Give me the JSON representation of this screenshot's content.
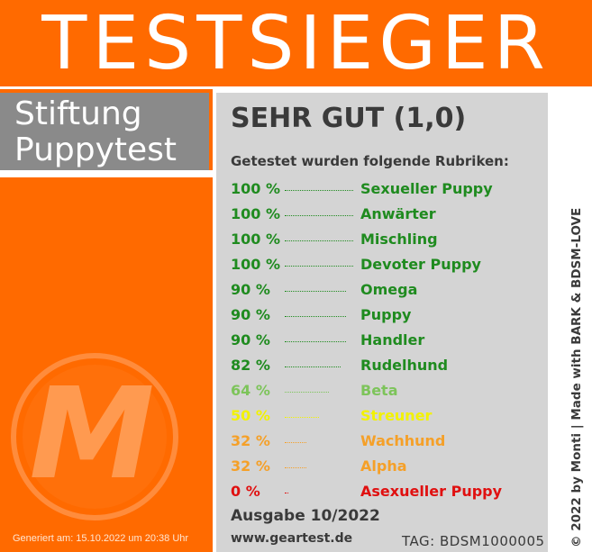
{
  "banner": {
    "title": "TESTSIEGER"
  },
  "brand": {
    "line1": "Stiftung",
    "line2": "Puppytest"
  },
  "result": {
    "grade": "SEHR GUT (1,0)",
    "subtitle": "Getestet wurden folgende Rubriken:"
  },
  "rubrics": [
    {
      "pct": "100 %",
      "name": "Sexueller Puppy",
      "value": 100,
      "color": "#1f8b1f"
    },
    {
      "pct": "100 %",
      "name": "Anwärter",
      "value": 100,
      "color": "#1f8b1f"
    },
    {
      "pct": "100 %",
      "name": "Mischling",
      "value": 100,
      "color": "#1f8b1f"
    },
    {
      "pct": "100 %",
      "name": "Devoter Puppy",
      "value": 100,
      "color": "#1f8b1f"
    },
    {
      "pct": "90 %",
      "name": "Omega",
      "value": 90,
      "color": "#1f8b1f"
    },
    {
      "pct": "90 %",
      "name": "Puppy",
      "value": 90,
      "color": "#1f8b1f"
    },
    {
      "pct": "90 %",
      "name": "Handler",
      "value": 90,
      "color": "#1f8b1f"
    },
    {
      "pct": "82 %",
      "name": "Rudelhund",
      "value": 82,
      "color": "#1f8b1f"
    },
    {
      "pct": "64 %",
      "name": "Beta",
      "value": 64,
      "color": "#7dc45a"
    },
    {
      "pct": "50 %",
      "name": "Streuner",
      "value": 50,
      "color": "#f2f200"
    },
    {
      "pct": "32 %",
      "name": "Wachhund",
      "value": 32,
      "color": "#f5a028"
    },
    {
      "pct": "32 %",
      "name": "Alpha",
      "value": 32,
      "color": "#f5a028"
    },
    {
      "pct": "0 %",
      "name": "Asexueller Puppy",
      "value": 0,
      "color": "#e01010"
    }
  ],
  "footer": {
    "issue": "Ausgabe 10/2022",
    "url": "www.geartest.de",
    "tag": "TAG: BDSM1000005",
    "generated": "Generiert am: 15.10.2022 um 20:38 Uhr",
    "credit": "© 2022 by Monti | Made with BARK & BDSM-LOVE"
  },
  "logo": {
    "letter": "M"
  },
  "colors": {
    "orange": "#ff6a00",
    "grey_panel": "#d4d4d4",
    "brand_grey": "#8a8a8a"
  }
}
